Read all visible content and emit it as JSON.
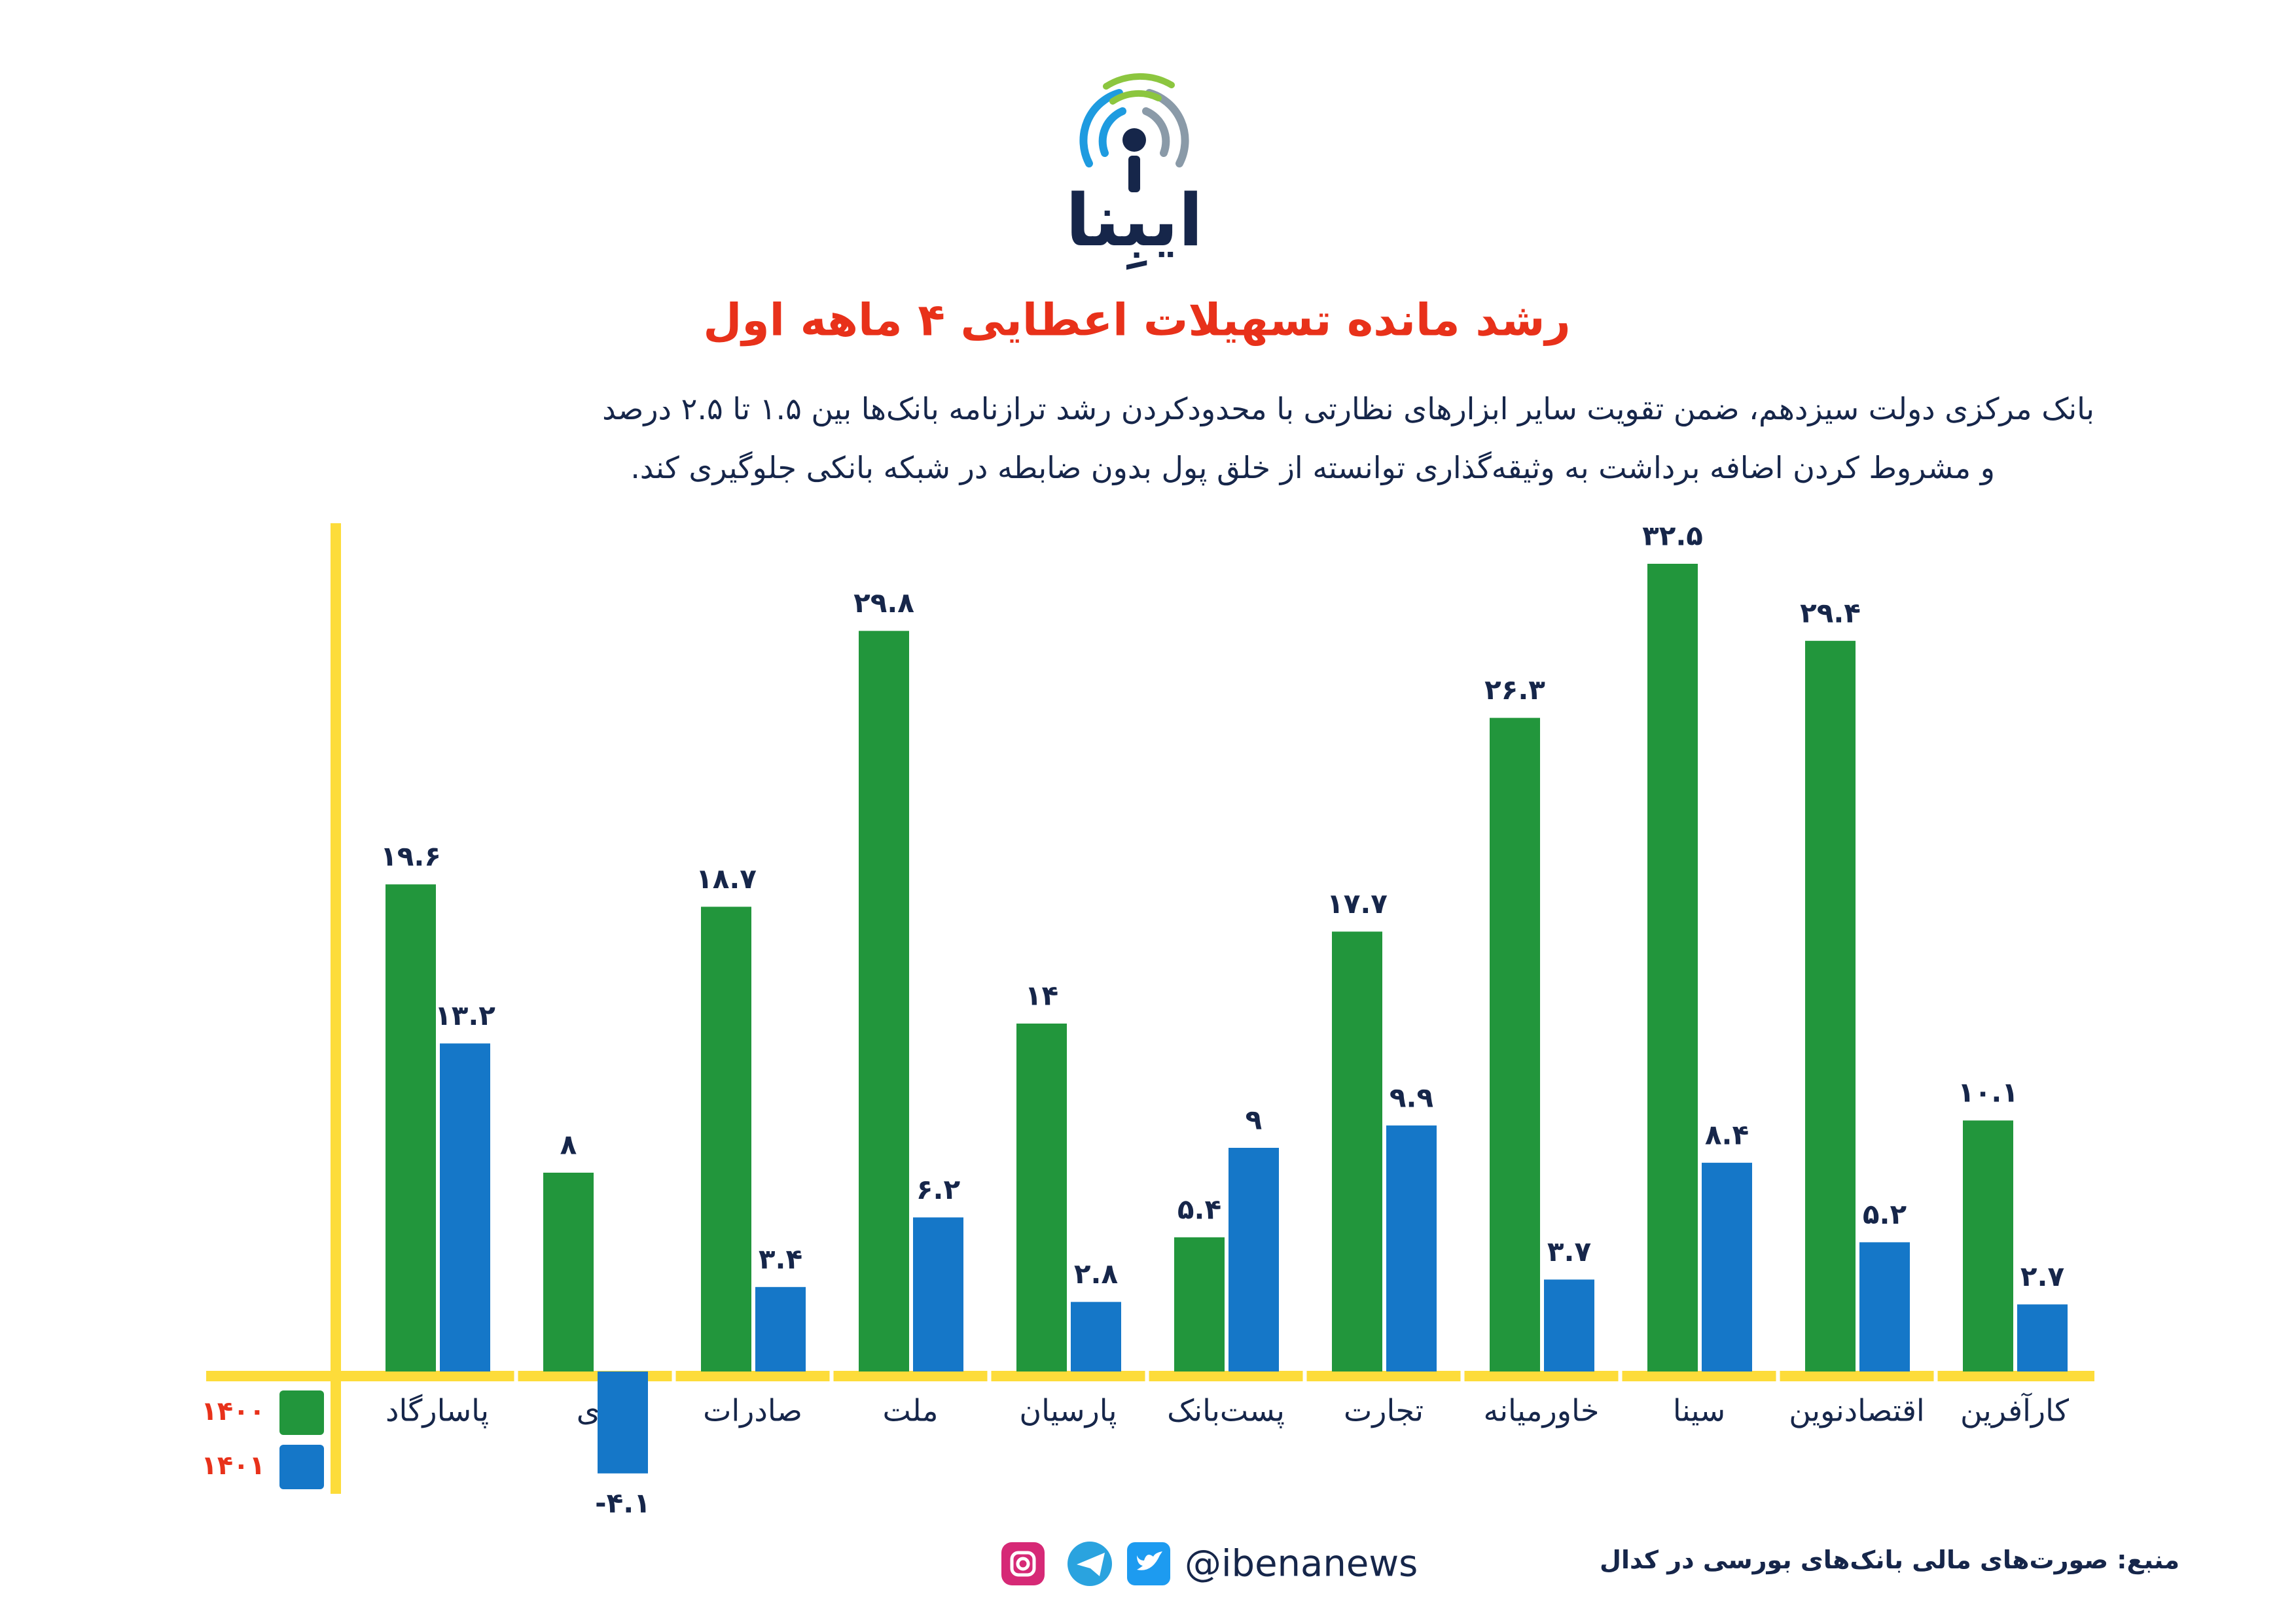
{
  "logo": "ایبِنا",
  "chart_data": {
    "type": "bar",
    "title": "رشد مانده تسهیلات اعطایی ۴ ماهه اول",
    "subtitle": [
      "بانک مرکزی دولت سیزدهم، ضمن تقویت سایر ابزارهای نظارتی با محدودکردن رشد ترازنامه بانک‌ها بین ۱.۵ تا ۲.۵ درصد",
      "و مشروط کردن اضافه برداشت به وثیقه‌گذاری توانسته از خلق پول بدون ضابطه در شبکه بانکی جلوگیری کند."
    ],
    "categories": [
      "پاسارگاد",
      "دی",
      "صادرات",
      "ملت",
      "پارسیان",
      "پست‌بانک",
      "تجارت",
      "خاورمیانه",
      "سینا",
      "اقتصادنوین",
      "کارآفرین"
    ],
    "series": [
      {
        "name": "۱۴۰۰",
        "color": "#22963c",
        "values": [
          19.6,
          8,
          18.7,
          29.8,
          14,
          5.4,
          17.7,
          26.3,
          32.5,
          29.4,
          10.1
        ],
        "value_labels": [
          "۱۹.۶",
          "۸",
          "۱۸.۷",
          "۲۹.۸",
          "۱۴",
          "۵.۴",
          "۱۷.۷",
          "۲۶.۳",
          "۳۲.۵",
          "۲۹.۴",
          "۱۰.۱"
        ]
      },
      {
        "name": "۱۴۰۱",
        "color": "#1577c8",
        "values": [
          13.2,
          -4.1,
          3.4,
          6.2,
          2.8,
          9,
          9.9,
          3.7,
          8.4,
          5.2,
          2.7
        ],
        "value_labels": [
          "۱۳.۲",
          "-۴.۱",
          "۳.۴",
          "۶.۲",
          "۲.۸",
          "۹",
          "۹.۹",
          "۳.۷",
          "۸.۴",
          "۵.۲",
          "۲.۷"
        ]
      }
    ],
    "source": "منبع: صورت‌های مالی بانک‌های بورسی در کدال",
    "handle": "@ibenanews"
  }
}
